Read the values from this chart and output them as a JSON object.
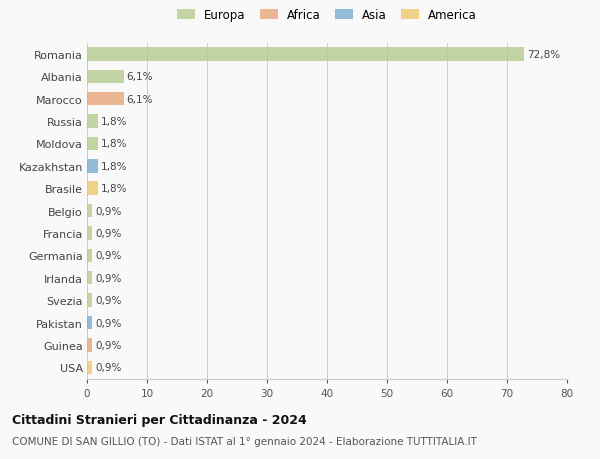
{
  "countries": [
    "Romania",
    "Albania",
    "Marocco",
    "Russia",
    "Moldova",
    "Kazakhstan",
    "Brasile",
    "Belgio",
    "Francia",
    "Germania",
    "Irlanda",
    "Svezia",
    "Pakistan",
    "Guinea",
    "USA"
  ],
  "values": [
    72.8,
    6.1,
    6.1,
    1.8,
    1.8,
    1.8,
    1.8,
    0.9,
    0.9,
    0.9,
    0.9,
    0.9,
    0.9,
    0.9,
    0.9
  ],
  "labels": [
    "72,8%",
    "6,1%",
    "6,1%",
    "1,8%",
    "1,8%",
    "1,8%",
    "1,8%",
    "0,9%",
    "0,9%",
    "0,9%",
    "0,9%",
    "0,9%",
    "0,9%",
    "0,9%",
    "0,9%"
  ],
  "colors": [
    "#b5cc8e",
    "#b5cc8e",
    "#e8a87c",
    "#b5cc8e",
    "#b5cc8e",
    "#7bafd4",
    "#f0c96e",
    "#b5cc8e",
    "#b5cc8e",
    "#b5cc8e",
    "#b5cc8e",
    "#b5cc8e",
    "#7bafd4",
    "#e8a87c",
    "#f0c96e"
  ],
  "legend_labels": [
    "Europa",
    "Africa",
    "Asia",
    "America"
  ],
  "legend_colors": [
    "#b5cc8e",
    "#e8a87c",
    "#7bafd4",
    "#f0c96e"
  ],
  "title": "Cittadini Stranieri per Cittadinanza - 2024",
  "subtitle": "COMUNE DI SAN GILLIO (TO) - Dati ISTAT al 1° gennaio 2024 - Elaborazione TUTTITALIA.IT",
  "xlim": [
    0,
    80
  ],
  "xticks": [
    0,
    10,
    20,
    30,
    40,
    50,
    60,
    70,
    80
  ],
  "bg_color": "#f9f9f9",
  "grid_color": "#cccccc",
  "bar_height": 0.6,
  "label_fontsize": 7.5,
  "ytick_fontsize": 8,
  "xtick_fontsize": 7.5,
  "legend_fontsize": 8.5,
  "title_fontsize": 9,
  "subtitle_fontsize": 7.5
}
